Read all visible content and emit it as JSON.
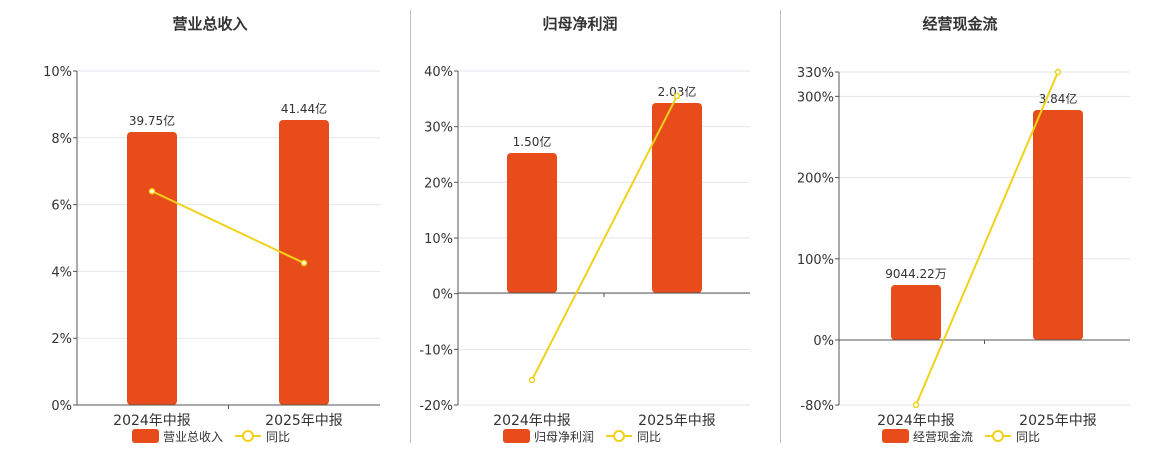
{
  "colors": {
    "bar": "#e84c1a",
    "line": "#f0d21a",
    "grid": "#e5e5ee",
    "axis": "#555555",
    "text": "#333333"
  },
  "chart_data": [
    {
      "type": "bar",
      "title": "营业总收入",
      "categories": [
        "2024年中报",
        "2025年中报"
      ],
      "bar_values_yi": [
        39.75,
        41.44
      ],
      "bar_labels": [
        "39.75亿",
        "41.44亿"
      ],
      "yoy_percent": [
        6.4,
        4.25
      ],
      "y_ticks": [
        "10%",
        "8%",
        "6%",
        "4%",
        "2%",
        "0%"
      ],
      "ylim": [
        0,
        10
      ],
      "legend": [
        "营业总收入",
        "同比"
      ]
    },
    {
      "type": "bar",
      "title": "归母净利润",
      "categories": [
        "2024年中报",
        "2025年中报"
      ],
      "bar_values_yi": [
        1.5,
        2.03
      ],
      "bar_labels": [
        "1.50亿",
        "2.03亿"
      ],
      "yoy_percent": [
        -15.5,
        35.5
      ],
      "y_ticks": [
        "40%",
        "30%",
        "20%",
        "10%",
        "0%",
        "-10%",
        "-20%"
      ],
      "ylim": [
        -20,
        40
      ],
      "legend": [
        "归母净利润",
        "同比"
      ]
    },
    {
      "type": "bar",
      "title": "经营现金流",
      "categories": [
        "2024年中报",
        "2025年中报"
      ],
      "bar_values_wan": [
        9044.22,
        38400
      ],
      "bar_labels": [
        "9044.22万",
        "3.84亿"
      ],
      "yoy_percent": [
        -80,
        330
      ],
      "y_ticks": [
        "330%",
        "300%",
        "200%",
        "100%",
        "0%",
        "-80%"
      ],
      "ylim": [
        -80,
        330
      ],
      "legend": [
        "经营现金流",
        "同比"
      ]
    }
  ]
}
